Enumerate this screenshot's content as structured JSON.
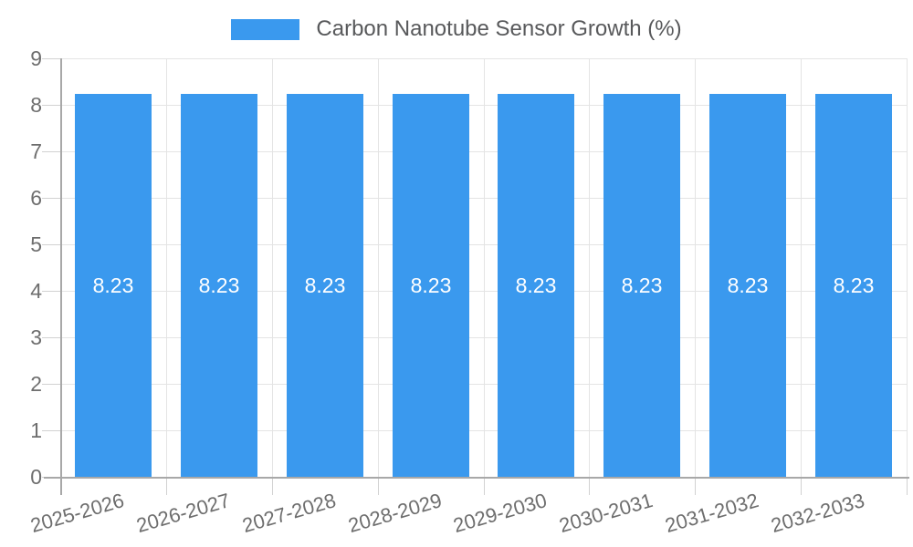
{
  "legend": {
    "label": "Carbon Nanotube Sensor Growth (%)"
  },
  "chart_data": {
    "type": "bar",
    "title": "",
    "legend_entries": [
      "Carbon Nanotube Sensor Growth (%)"
    ],
    "legend_position": "top",
    "categories": [
      "2025-2026",
      "2026-2027",
      "2027-2028",
      "2028-2029",
      "2029-2030",
      "2030-2031",
      "2031-2032",
      "2032-2033"
    ],
    "series": [
      {
        "name": "Carbon Nanotube Sensor Growth (%)",
        "values": [
          8.23,
          8.23,
          8.23,
          8.23,
          8.23,
          8.23,
          8.23,
          8.23
        ]
      }
    ],
    "value_labels": [
      "8.23",
      "8.23",
      "8.23",
      "8.23",
      "8.23",
      "8.23",
      "8.23",
      "8.23"
    ],
    "xlabel": "",
    "ylabel": "",
    "ylim": [
      0,
      9
    ],
    "yticks": [
      "0",
      "1",
      "2",
      "3",
      "4",
      "5",
      "6",
      "7",
      "8",
      "9"
    ],
    "grid": "both",
    "colors": {
      "bar": "#3A99EE",
      "grid": "#E4E4E4",
      "tick": "#D2D2D2",
      "axis_line": "#A8A8A8",
      "axis_label_text": "#6E6E6E",
      "legend_text": "#58595B",
      "value_label_text": "#FFFFFF",
      "background": "#FFFFFF"
    }
  }
}
